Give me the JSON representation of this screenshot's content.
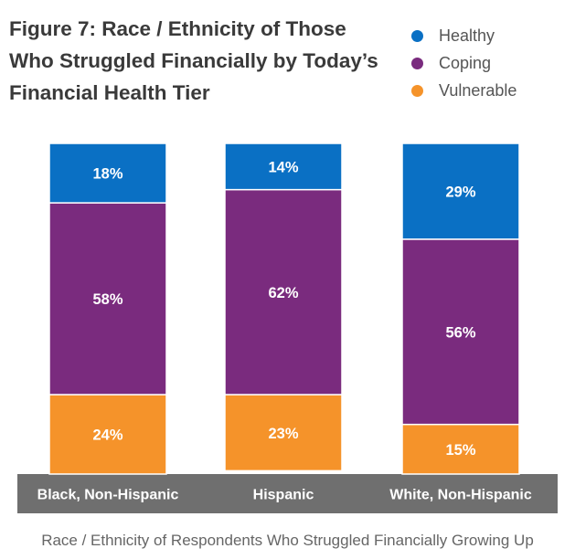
{
  "chart_data": {
    "type": "bar",
    "stacked": true,
    "title": "Figure 7: Race / Ethnicity of Those\nWho Struggled Financially by Today’s\nFinancial Health Tier",
    "xlabel": "Race / Ethnicity of Respondents Who Struggled Financially Growing Up",
    "ylabel": "",
    "categories": [
      "Black, Non-Hispanic",
      "Hispanic",
      "White, Non-Hispanic"
    ],
    "series": [
      {
        "name": "Healthy",
        "color": "#0a70c4",
        "values": [
          18,
          14,
          29
        ],
        "labels": [
          "18%",
          "14%",
          "29%"
        ]
      },
      {
        "name": "Coping",
        "color": "#7a2b7e",
        "values": [
          58,
          62,
          56
        ],
        "labels": [
          "58%",
          "62%",
          "56%"
        ]
      },
      {
        "name": "Vulnerable",
        "color": "#f5932a",
        "values": [
          24,
          23,
          15
        ],
        "labels": [
          "24%",
          "23%",
          "15%"
        ]
      }
    ],
    "ylim": [
      0,
      100
    ],
    "legend_position": "top-right",
    "grid": false,
    "category_band_color": "#6f6f6f"
  }
}
